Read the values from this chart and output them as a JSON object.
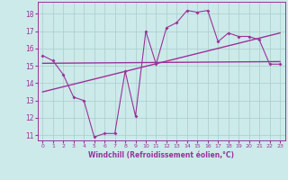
{
  "title": "",
  "xlabel": "Windchill (Refroidissement éolien,°C)",
  "background_color": "#cceaea",
  "grid_color": "#aacccc",
  "line_color": "#993399",
  "xlim": [
    -0.5,
    23.5
  ],
  "ylim": [
    10.7,
    18.7
  ],
  "xticks": [
    0,
    1,
    2,
    3,
    4,
    5,
    6,
    7,
    8,
    9,
    10,
    11,
    12,
    13,
    14,
    15,
    16,
    17,
    18,
    19,
    20,
    21,
    22,
    23
  ],
  "yticks": [
    11,
    12,
    13,
    14,
    15,
    16,
    17,
    18
  ],
  "main_data": [
    [
      0,
      15.6
    ],
    [
      1,
      15.3
    ],
    [
      2,
      14.5
    ],
    [
      3,
      13.2
    ],
    [
      4,
      13.0
    ],
    [
      5,
      10.9
    ],
    [
      6,
      11.1
    ],
    [
      7,
      11.1
    ],
    [
      8,
      14.7
    ],
    [
      9,
      12.1
    ],
    [
      10,
      17.0
    ],
    [
      11,
      15.1
    ],
    [
      12,
      17.2
    ],
    [
      13,
      17.5
    ],
    [
      14,
      18.2
    ],
    [
      15,
      18.1
    ],
    [
      16,
      18.2
    ],
    [
      17,
      16.4
    ],
    [
      18,
      16.9
    ],
    [
      19,
      16.7
    ],
    [
      20,
      16.7
    ],
    [
      21,
      16.5
    ],
    [
      22,
      15.1
    ],
    [
      23,
      15.1
    ]
  ],
  "trend1_x": [
    0,
    23
  ],
  "trend1_y": [
    15.15,
    15.25
  ],
  "trend2_x": [
    0,
    23
  ],
  "trend2_y": [
    13.5,
    16.9
  ]
}
